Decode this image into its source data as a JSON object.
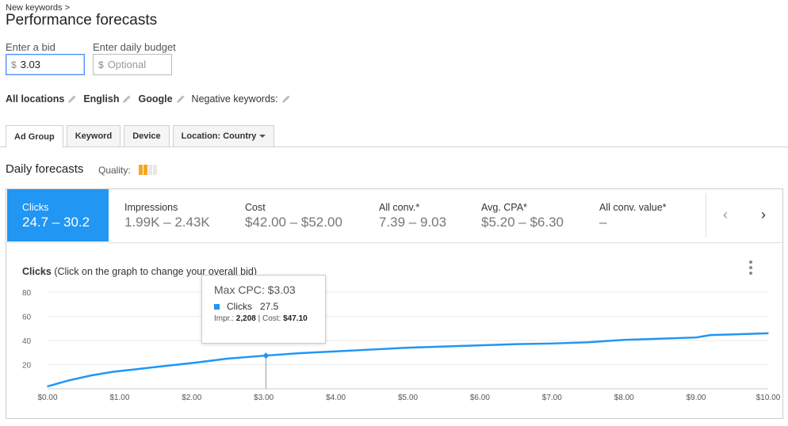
{
  "breadcrumb": "New keywords >",
  "title": "Performance forecasts",
  "bid": {
    "label": "Enter a bid",
    "currency": "$",
    "value": "3.03"
  },
  "budget": {
    "label": "Enter daily budget",
    "currency": "$",
    "placeholder": "Optional"
  },
  "settings": [
    {
      "label": "All locations"
    },
    {
      "label": "English"
    },
    {
      "label": "Google"
    },
    {
      "label": "Negative keywords:"
    }
  ],
  "tabs": [
    {
      "label": "Ad Group",
      "active": true
    },
    {
      "label": "Keyword"
    },
    {
      "label": "Device"
    },
    {
      "label": "Location: Country",
      "dropdown": true
    }
  ],
  "section_title": "Daily forecasts",
  "quality_label": "Quality:",
  "quality": {
    "filled": 2,
    "total": 4,
    "colors": {
      "filled": "#f5a623",
      "empty": "#e8e8e8"
    }
  },
  "metrics": [
    {
      "label": "Clicks",
      "value": "24.7 – 30.2",
      "active": true
    },
    {
      "label": "Impressions",
      "value": "1.99K – 2.43K"
    },
    {
      "label": "Cost",
      "value": "$42.00 – $52.00"
    },
    {
      "label": "All conv.*",
      "value": "7.39 – 9.03"
    },
    {
      "label": "Avg. CPA*",
      "value": "$5.20 – $6.30"
    },
    {
      "label": "All conv. value*",
      "value": "–"
    }
  ],
  "nav": {
    "prev": "‹",
    "next": "›"
  },
  "chart_title": {
    "bold": "Clicks",
    "rest": " (Click on the graph to change your overall bid)"
  },
  "tooltip": {
    "title": "Max CPC: $3.03",
    "series": "Clicks",
    "value": "27.5",
    "impr_label": "Impr.:",
    "impr": "2,208",
    "sep": " | ",
    "cost_label": "Cost:",
    "cost": "$47.10"
  },
  "accent_color": "#2196f3",
  "chart_data": {
    "type": "line",
    "title": "",
    "xlabel": "",
    "ylabel": "",
    "xlim": [
      0,
      10
    ],
    "ylim": [
      0,
      80
    ],
    "x_ticks": [
      "$0.00",
      "$1.00",
      "$2.00",
      "$3.00",
      "$4.00",
      "$5.00",
      "$6.00",
      "$7.00",
      "$8.00",
      "$9.00",
      "$10.00"
    ],
    "y_ticks": [
      "20",
      "40",
      "60",
      "80"
    ],
    "grid": true,
    "series": [
      {
        "name": "Clicks",
        "color": "#2196f3",
        "x": [
          0,
          0.3,
          0.6,
          0.9,
          1.2,
          1.5,
          1.8,
          2.1,
          2.5,
          3.03,
          3.5,
          4.0,
          4.5,
          5.0,
          5.5,
          6.0,
          6.5,
          7.0,
          7.5,
          8.0,
          8.5,
          9.0,
          9.2,
          9.5,
          10.0
        ],
        "values": [
          2,
          7,
          11,
          14,
          16,
          18,
          20,
          22,
          25,
          27.5,
          29.5,
          31,
          32.5,
          34,
          35,
          36,
          37,
          37.5,
          38.5,
          40.5,
          41.5,
          42.5,
          44.5,
          45,
          46
        ]
      }
    ],
    "highlight": {
      "x": 3.03,
      "y": 27.5
    },
    "legend": "none"
  }
}
